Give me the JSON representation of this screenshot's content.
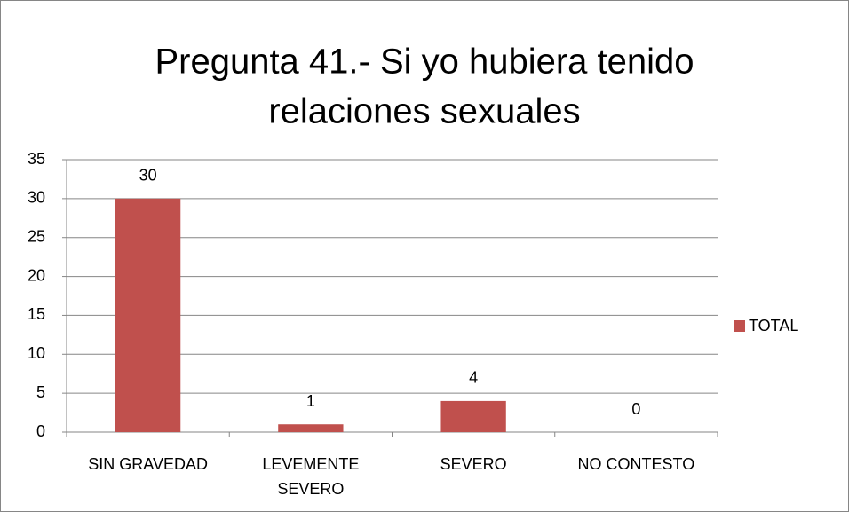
{
  "chart_data": {
    "type": "bar",
    "title": [
      "Pregunta 41.- Si yo hubiera tenido",
      "relaciones sexuales"
    ],
    "categories": [
      "SIN GRAVEDAD",
      "LEVEMENTE SEVERO",
      "SEVERO",
      "NO CONTESTO"
    ],
    "series": [
      {
        "name": "TOTAL",
        "color": "#c0504d",
        "values": [
          30,
          1,
          4,
          0
        ]
      }
    ],
    "ylim": [
      0,
      35
    ],
    "yticks": [
      0,
      5,
      10,
      15,
      20,
      25,
      30,
      35
    ],
    "grid": true,
    "legend": "right"
  }
}
